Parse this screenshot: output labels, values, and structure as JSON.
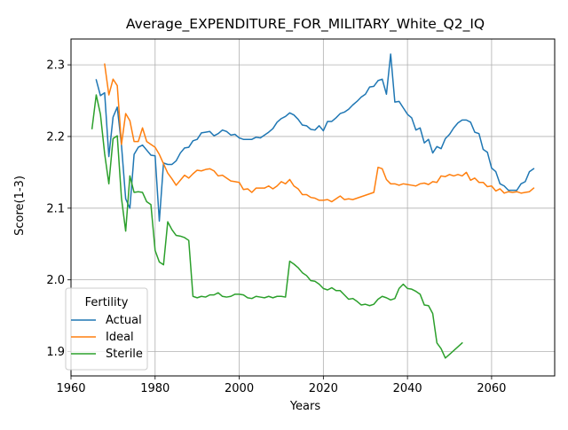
{
  "chart_data": {
    "type": "line",
    "title": "Average_EXPENDITURE_FOR_MILITARY_White_Q2_IQ",
    "xlabel": "Years",
    "ylabel": "Score(1-3)",
    "xlim": [
      1960,
      2075
    ],
    "ylim": [
      1.866,
      2.336
    ],
    "xticks": [
      1960,
      1980,
      2000,
      2020,
      2040,
      2060
    ],
    "yticks": [
      1.9,
      2.0,
      2.1,
      2.2,
      2.3
    ],
    "xtick_labels": [
      "1960",
      "1980",
      "2000",
      "2020",
      "2040",
      "2060"
    ],
    "ytick_labels": [
      "1.9",
      "2.0",
      "2.1",
      "2.2",
      "2.3"
    ],
    "grid": true,
    "legend": {
      "title": "Fertility",
      "placement": "lower-left"
    },
    "series": [
      {
        "name": "Actual",
        "color": "#1f77b4",
        "points": [
          [
            1966,
            2.279
          ],
          [
            1967,
            2.257
          ],
          [
            1968,
            2.261
          ],
          [
            1969,
            2.172
          ],
          [
            1970,
            2.227
          ],
          [
            1971,
            2.241
          ],
          [
            1972,
            2.188
          ],
          [
            1973,
            2.113
          ],
          [
            1974,
            2.1
          ],
          [
            1975,
            2.175
          ],
          [
            1976,
            2.185
          ],
          [
            1977,
            2.188
          ],
          [
            1978,
            2.181
          ],
          [
            1979,
            2.174
          ],
          [
            1980,
            2.173
          ],
          [
            1981,
            2.082
          ],
          [
            1982,
            2.163
          ],
          [
            1983,
            2.161
          ],
          [
            1984,
            2.161
          ],
          [
            1985,
            2.166
          ],
          [
            1986,
            2.177
          ],
          [
            1987,
            2.184
          ],
          [
            1988,
            2.185
          ],
          [
            1989,
            2.194
          ],
          [
            1990,
            2.196
          ],
          [
            1991,
            2.205
          ],
          [
            1992,
            2.206
          ],
          [
            1993,
            2.207
          ],
          [
            1994,
            2.201
          ],
          [
            1995,
            2.204
          ],
          [
            1996,
            2.209
          ],
          [
            1997,
            2.207
          ],
          [
            1998,
            2.202
          ],
          [
            1999,
            2.203
          ],
          [
            2000,
            2.198
          ],
          [
            2001,
            2.196
          ],
          [
            2002,
            2.196
          ],
          [
            2003,
            2.196
          ],
          [
            2004,
            2.199
          ],
          [
            2005,
            2.198
          ],
          [
            2006,
            2.202
          ],
          [
            2007,
            2.206
          ],
          [
            2008,
            2.211
          ],
          [
            2009,
            2.22
          ],
          [
            2010,
            2.225
          ],
          [
            2011,
            2.228
          ],
          [
            2012,
            2.233
          ],
          [
            2013,
            2.23
          ],
          [
            2014,
            2.224
          ],
          [
            2015,
            2.216
          ],
          [
            2016,
            2.215
          ],
          [
            2017,
            2.21
          ],
          [
            2018,
            2.209
          ],
          [
            2019,
            2.215
          ],
          [
            2020,
            2.208
          ],
          [
            2021,
            2.221
          ],
          [
            2022,
            2.221
          ],
          [
            2023,
            2.226
          ],
          [
            2024,
            2.232
          ],
          [
            2025,
            2.234
          ],
          [
            2026,
            2.238
          ],
          [
            2027,
            2.244
          ],
          [
            2028,
            2.249
          ],
          [
            2029,
            2.255
          ],
          [
            2030,
            2.259
          ],
          [
            2031,
            2.269
          ],
          [
            2032,
            2.27
          ],
          [
            2033,
            2.278
          ],
          [
            2034,
            2.28
          ],
          [
            2035,
            2.259
          ],
          [
            2036,
            2.315
          ],
          [
            2037,
            2.248
          ],
          [
            2038,
            2.249
          ],
          [
            2039,
            2.24
          ],
          [
            2040,
            2.231
          ],
          [
            2041,
            2.226
          ],
          [
            2042,
            2.209
          ],
          [
            2043,
            2.212
          ],
          [
            2044,
            2.191
          ],
          [
            2045,
            2.196
          ],
          [
            2046,
            2.177
          ],
          [
            2047,
            2.186
          ],
          [
            2048,
            2.183
          ],
          [
            2049,
            2.197
          ],
          [
            2050,
            2.203
          ],
          [
            2051,
            2.212
          ],
          [
            2052,
            2.219
          ],
          [
            2053,
            2.223
          ],
          [
            2054,
            2.223
          ],
          [
            2055,
            2.22
          ],
          [
            2056,
            2.206
          ],
          [
            2057,
            2.204
          ],
          [
            2058,
            2.182
          ],
          [
            2059,
            2.178
          ],
          [
            2060,
            2.156
          ],
          [
            2061,
            2.151
          ],
          [
            2062,
            2.134
          ],
          [
            2063,
            2.131
          ],
          [
            2064,
            2.125
          ],
          [
            2065,
            2.125
          ],
          [
            2066,
            2.125
          ],
          [
            2067,
            2.134
          ],
          [
            2068,
            2.137
          ],
          [
            2069,
            2.151
          ],
          [
            2070,
            2.155
          ]
        ]
      },
      {
        "name": "Ideal",
        "color": "#ff7f0e",
        "points": [
          [
            1968,
            2.301
          ],
          [
            1969,
            2.258
          ],
          [
            1970,
            2.28
          ],
          [
            1971,
            2.271
          ],
          [
            1972,
            2.189
          ],
          [
            1973,
            2.232
          ],
          [
            1974,
            2.222
          ],
          [
            1975,
            2.193
          ],
          [
            1976,
            2.193
          ],
          [
            1977,
            2.212
          ],
          [
            1978,
            2.193
          ],
          [
            1979,
            2.189
          ],
          [
            1980,
            2.185
          ],
          [
            1981,
            2.175
          ],
          [
            1982,
            2.162
          ],
          [
            1983,
            2.149
          ],
          [
            1984,
            2.141
          ],
          [
            1985,
            2.132
          ],
          [
            1986,
            2.139
          ],
          [
            1987,
            2.146
          ],
          [
            1988,
            2.142
          ],
          [
            1989,
            2.148
          ],
          [
            1990,
            2.153
          ],
          [
            1991,
            2.152
          ],
          [
            1992,
            2.154
          ],
          [
            1993,
            2.155
          ],
          [
            1994,
            2.152
          ],
          [
            1995,
            2.145
          ],
          [
            1996,
            2.146
          ],
          [
            1997,
            2.142
          ],
          [
            1998,
            2.138
          ],
          [
            1999,
            2.137
          ],
          [
            2000,
            2.136
          ],
          [
            2001,
            2.126
          ],
          [
            2002,
            2.127
          ],
          [
            2003,
            2.122
          ],
          [
            2004,
            2.128
          ],
          [
            2005,
            2.128
          ],
          [
            2006,
            2.128
          ],
          [
            2007,
            2.131
          ],
          [
            2008,
            2.127
          ],
          [
            2009,
            2.131
          ],
          [
            2010,
            2.137
          ],
          [
            2011,
            2.134
          ],
          [
            2012,
            2.14
          ],
          [
            2013,
            2.131
          ],
          [
            2014,
            2.127
          ],
          [
            2015,
            2.119
          ],
          [
            2016,
            2.119
          ],
          [
            2017,
            2.115
          ],
          [
            2018,
            2.114
          ],
          [
            2019,
            2.111
          ],
          [
            2020,
            2.111
          ],
          [
            2021,
            2.112
          ],
          [
            2022,
            2.109
          ],
          [
            2023,
            2.113
          ],
          [
            2024,
            2.117
          ],
          [
            2025,
            2.112
          ],
          [
            2026,
            2.113
          ],
          [
            2027,
            2.112
          ],
          [
            2028,
            2.114
          ],
          [
            2029,
            2.116
          ],
          [
            2030,
            2.118
          ],
          [
            2031,
            2.12
          ],
          [
            2032,
            2.122
          ],
          [
            2033,
            2.157
          ],
          [
            2034,
            2.155
          ],
          [
            2035,
            2.14
          ],
          [
            2036,
            2.134
          ],
          [
            2037,
            2.134
          ],
          [
            2038,
            2.132
          ],
          [
            2039,
            2.134
          ],
          [
            2040,
            2.133
          ],
          [
            2041,
            2.132
          ],
          [
            2042,
            2.131
          ],
          [
            2043,
            2.134
          ],
          [
            2044,
            2.135
          ],
          [
            2045,
            2.133
          ],
          [
            2046,
            2.137
          ],
          [
            2047,
            2.136
          ],
          [
            2048,
            2.145
          ],
          [
            2049,
            2.144
          ],
          [
            2050,
            2.147
          ],
          [
            2051,
            2.145
          ],
          [
            2052,
            2.147
          ],
          [
            2053,
            2.145
          ],
          [
            2054,
            2.15
          ],
          [
            2055,
            2.139
          ],
          [
            2056,
            2.142
          ],
          [
            2057,
            2.136
          ],
          [
            2058,
            2.136
          ],
          [
            2059,
            2.13
          ],
          [
            2060,
            2.131
          ],
          [
            2061,
            2.124
          ],
          [
            2062,
            2.127
          ],
          [
            2063,
            2.121
          ],
          [
            2064,
            2.123
          ],
          [
            2065,
            2.122
          ],
          [
            2066,
            2.123
          ],
          [
            2067,
            2.121
          ],
          [
            2068,
            2.122
          ],
          [
            2069,
            2.123
          ],
          [
            2070,
            2.128
          ]
        ]
      },
      {
        "name": "Sterile",
        "color": "#2ca02c",
        "points": [
          [
            1965,
            2.211
          ],
          [
            1966,
            2.258
          ],
          [
            1967,
            2.231
          ],
          [
            1968,
            2.176
          ],
          [
            1969,
            2.134
          ],
          [
            1970,
            2.197
          ],
          [
            1971,
            2.201
          ],
          [
            1972,
            2.114
          ],
          [
            1973,
            2.068
          ],
          [
            1974,
            2.145
          ],
          [
            1975,
            2.122
          ],
          [
            1976,
            2.123
          ],
          [
            1977,
            2.122
          ],
          [
            1978,
            2.109
          ],
          [
            1979,
            2.105
          ],
          [
            1980,
            2.041
          ],
          [
            1981,
            2.025
          ],
          [
            1982,
            2.021
          ],
          [
            1983,
            2.081
          ],
          [
            1984,
            2.07
          ],
          [
            1985,
            2.062
          ],
          [
            1986,
            2.061
          ],
          [
            1987,
            2.059
          ],
          [
            1988,
            2.055
          ],
          [
            1989,
            1.977
          ],
          [
            1990,
            1.975
          ],
          [
            1991,
            1.977
          ],
          [
            1992,
            1.976
          ],
          [
            1993,
            1.979
          ],
          [
            1994,
            1.979
          ],
          [
            1995,
            1.982
          ],
          [
            1996,
            1.977
          ],
          [
            1997,
            1.976
          ],
          [
            1998,
            1.977
          ],
          [
            1999,
            1.98
          ],
          [
            2000,
            1.98
          ],
          [
            2001,
            1.979
          ],
          [
            2002,
            1.975
          ],
          [
            2003,
            1.974
          ],
          [
            2004,
            1.977
          ],
          [
            2005,
            1.976
          ],
          [
            2006,
            1.975
          ],
          [
            2007,
            1.977
          ],
          [
            2008,
            1.975
          ],
          [
            2009,
            1.977
          ],
          [
            2010,
            1.977
          ],
          [
            2011,
            1.976
          ],
          [
            2012,
            2.026
          ],
          [
            2013,
            2.022
          ],
          [
            2014,
            2.017
          ],
          [
            2015,
            2.01
          ],
          [
            2016,
            2.006
          ],
          [
            2017,
            1.999
          ],
          [
            2018,
            1.998
          ],
          [
            2019,
            1.994
          ],
          [
            2020,
            1.988
          ],
          [
            2021,
            1.986
          ],
          [
            2022,
            1.989
          ],
          [
            2023,
            1.985
          ],
          [
            2024,
            1.985
          ],
          [
            2025,
            1.979
          ],
          [
            2026,
            1.973
          ],
          [
            2027,
            1.974
          ],
          [
            2028,
            1.97
          ],
          [
            2029,
            1.965
          ],
          [
            2030,
            1.966
          ],
          [
            2031,
            1.964
          ],
          [
            2032,
            1.966
          ],
          [
            2033,
            1.973
          ],
          [
            2034,
            1.977
          ],
          [
            2035,
            1.975
          ],
          [
            2036,
            1.972
          ],
          [
            2037,
            1.974
          ],
          [
            2038,
            1.988
          ],
          [
            2039,
            1.994
          ],
          [
            2040,
            1.988
          ],
          [
            2041,
            1.987
          ],
          [
            2042,
            1.984
          ],
          [
            2043,
            1.98
          ],
          [
            2044,
            1.965
          ],
          [
            2045,
            1.964
          ],
          [
            2046,
            1.953
          ],
          [
            2047,
            1.912
          ],
          [
            2048,
            1.904
          ],
          [
            2049,
            1.891
          ],
          [
            2050,
            1.896
          ],
          [
            2053,
            1.912
          ]
        ]
      }
    ]
  }
}
